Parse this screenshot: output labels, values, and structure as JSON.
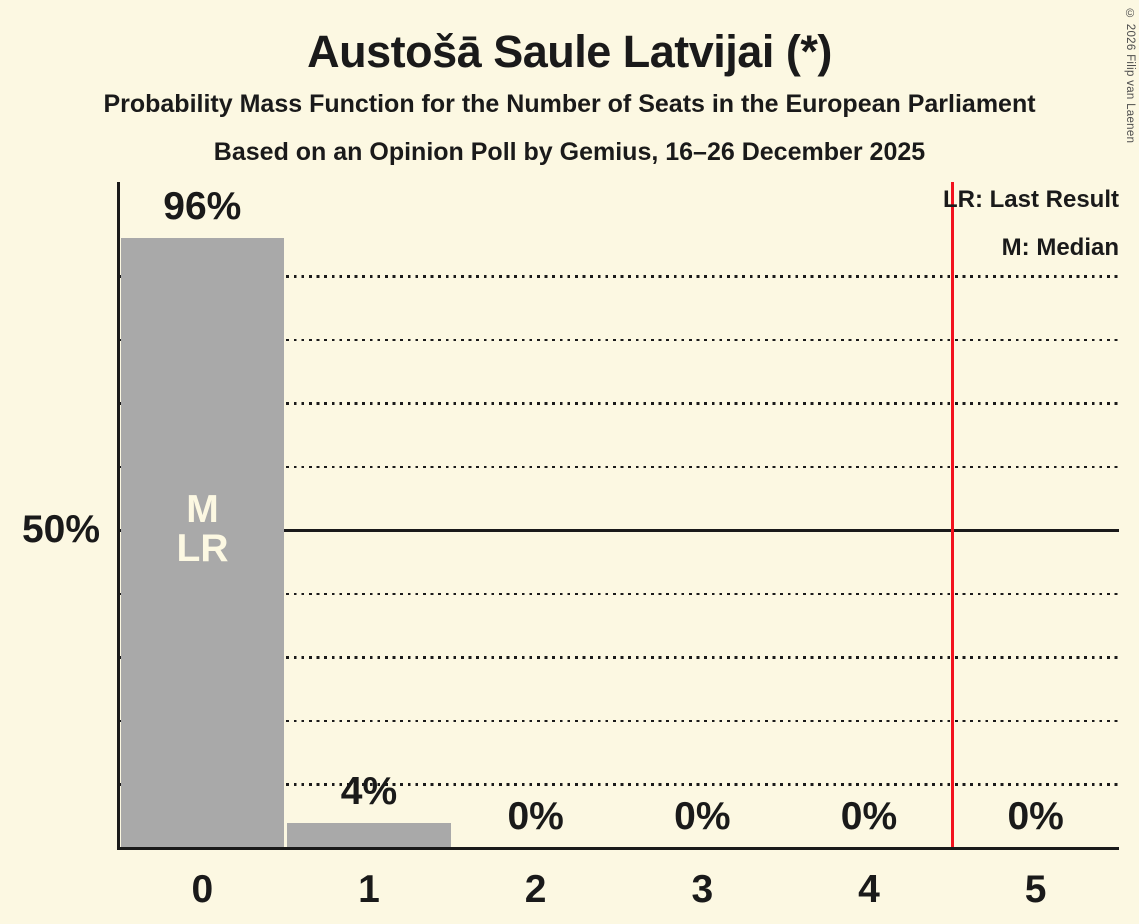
{
  "title": "Austošā Saule Latvijai (*)",
  "subtitle": "Probability Mass Function for the Number of Seats in the European Parliament",
  "poll_line": "Based on an Opinion Poll by Gemius, 16–26 December 2025",
  "copyright": "© 2026 Filip van Laenen",
  "legend": {
    "lr": "LR: Last Result",
    "m": "M: Median"
  },
  "y_axis_label": "50%",
  "annotations": {
    "median": "M",
    "last_result": "LR"
  },
  "colors": {
    "background": "#FCF8E2",
    "bar": "#A9A9A9",
    "ink": "#1A1A1A",
    "red_line": "#F2121E",
    "bar_text": "#FCF8E2"
  },
  "chart_data": {
    "type": "bar",
    "title": "Austošā Saule Latvijai (*)",
    "categories": [
      "0",
      "1",
      "2",
      "3",
      "4",
      "5"
    ],
    "values": [
      96,
      4,
      0,
      0,
      0,
      0
    ],
    "value_labels": [
      "96%",
      "4%",
      "0%",
      "0%",
      "0%",
      "0%"
    ],
    "ylim": [
      0,
      100
    ],
    "y_tick_labels": [
      "50%"
    ],
    "gridlines_pct": [
      10,
      20,
      30,
      40,
      50,
      60,
      70,
      80,
      90
    ],
    "solid_gridline_pct": 50,
    "grid": true,
    "legend_position": "top-right",
    "median_category": "0",
    "last_result_category": "0",
    "vertical_line_x": 4.5
  }
}
